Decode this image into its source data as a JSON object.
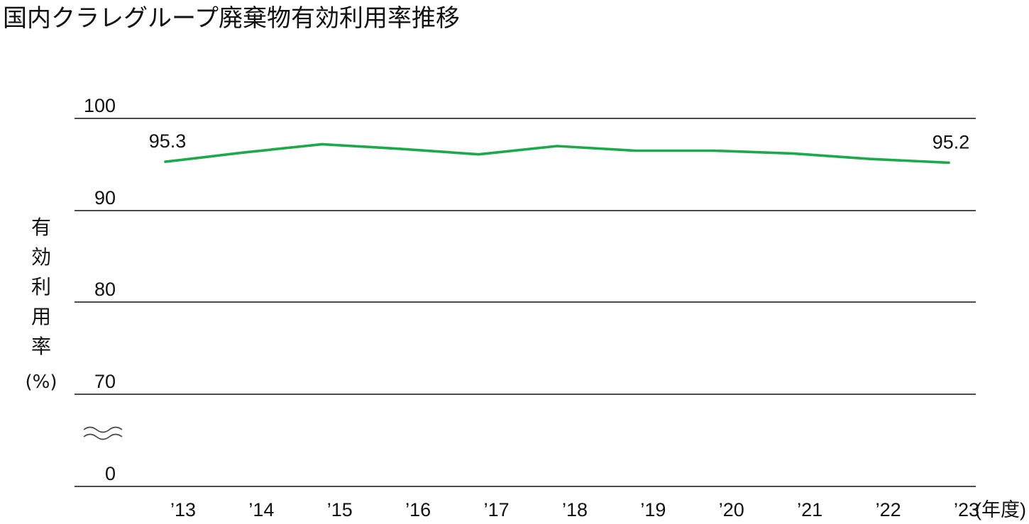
{
  "title": "国内クラレグループ廃棄物有効利用率推移",
  "y_axis": {
    "chars": [
      "有",
      "効",
      "利",
      "用",
      "率"
    ],
    "unit": "(%)"
  },
  "x_unit": "(年度)",
  "colors": {
    "line": "#1aaa4a",
    "grid": "#111111"
  },
  "break_symbol": "axis-break-icon",
  "chart_data": {
    "type": "line",
    "title": "国内クラレグループ廃棄物有効利用率推移",
    "xlabel": "(年度)",
    "ylabel": "有効利用率(%)",
    "categories": [
      "’13",
      "’14",
      "’15",
      "’16",
      "’17",
      "’18",
      "’19",
      "’20",
      "’21",
      "’22",
      "’23"
    ],
    "y_ticks": [
      "0",
      "70",
      "80",
      "90",
      "100"
    ],
    "y_break": [
      0,
      70
    ],
    "ylim": [
      70,
      100
    ],
    "grid": true,
    "series": [
      {
        "values": [
          95.3,
          96.3,
          97.2,
          96.7,
          96.1,
          97.0,
          96.5,
          96.5,
          96.2,
          95.6,
          95.2
        ]
      }
    ],
    "data_labels": [
      {
        "index": 0,
        "text": "95.3"
      },
      {
        "index": 10,
        "text": "95.2"
      }
    ]
  }
}
